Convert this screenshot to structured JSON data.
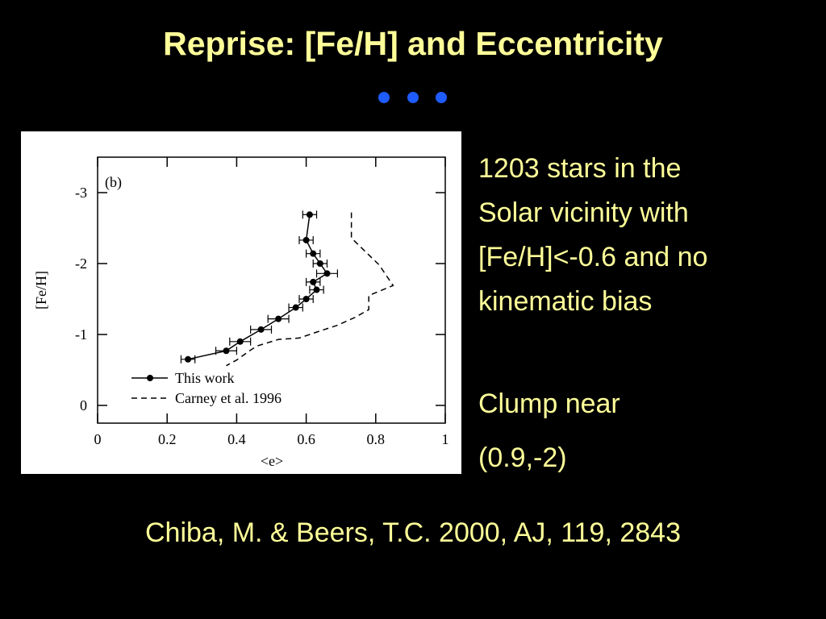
{
  "title": "Reprise: [Fe/H] and Eccentricity",
  "notes": [
    [
      "1203 stars in the",
      "Solar vicinity with",
      "[Fe/H]<-0.6 and no",
      "kinematic bias"
    ],
    [
      "Clump near",
      "(0.9,-2)"
    ]
  ],
  "citation": "Chiba, M. & Beers, T.C. 2000, AJ, 119, 2843",
  "chart_data": {
    "type": "scatter",
    "panel_label": "(b)",
    "x_label": "<e>",
    "y_label": "[Fe/H]",
    "xlim": [
      0,
      1
    ],
    "xticks": [
      0,
      0.2,
      0.4,
      0.6,
      0.8,
      1
    ],
    "ylim": [
      0.25,
      -3.5
    ],
    "yticks": [
      0,
      -1,
      -2,
      -3
    ],
    "series": [
      {
        "name": "This work",
        "color": "#000000",
        "style": "solid-markers",
        "x": [
          0.61,
          0.6,
          0.62,
          0.64,
          0.66,
          0.62,
          0.63,
          0.6,
          0.57,
          0.52,
          0.47,
          0.41,
          0.37,
          0.26
        ],
        "x_err": [
          0.02,
          0.02,
          0.02,
          0.02,
          0.03,
          0.02,
          0.02,
          0.02,
          0.02,
          0.03,
          0.03,
          0.03,
          0.03,
          0.02
        ],
        "values": [
          -2.69,
          -2.33,
          -2.14,
          -2.0,
          -1.86,
          -1.74,
          -1.63,
          -1.5,
          -1.38,
          -1.22,
          -1.07,
          -0.9,
          -0.77,
          -0.65
        ]
      },
      {
        "name": "Carney et al. 1996",
        "color": "#000000",
        "style": "dashed",
        "x": [
          0.73,
          0.73,
          0.81,
          0.85,
          0.78,
          0.78,
          0.74,
          0.69,
          0.64,
          0.58,
          0.52,
          0.46,
          0.44,
          0.4,
          0.37
        ],
        "values": [
          -2.72,
          -2.36,
          -1.98,
          -1.69,
          -1.55,
          -1.35,
          -1.24,
          -1.13,
          -1.05,
          -0.95,
          -0.93,
          -0.84,
          -0.78,
          -0.64,
          -0.56
        ]
      }
    ]
  }
}
